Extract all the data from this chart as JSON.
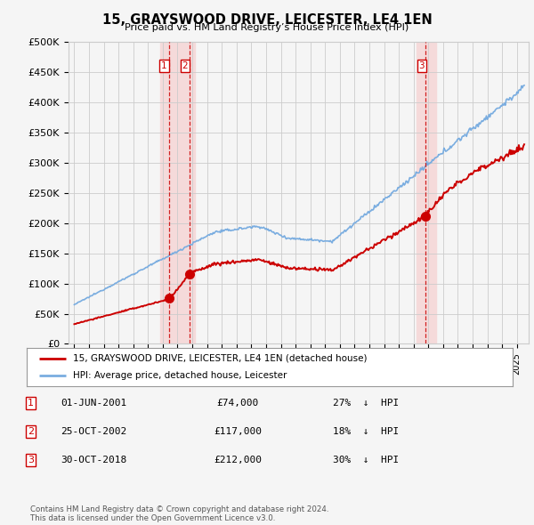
{
  "title": "15, GRAYSWOOD DRIVE, LEICESTER, LE4 1EN",
  "subtitle": "Price paid vs. HM Land Registry’s House Price Index (HPI)",
  "ylim": [
    0,
    500000
  ],
  "yticks": [
    0,
    50000,
    100000,
    150000,
    200000,
    250000,
    300000,
    350000,
    400000,
    450000,
    500000
  ],
  "ytick_labels": [
    "£0",
    "£50K",
    "£100K",
    "£150K",
    "£200K",
    "£250K",
    "£300K",
    "£350K",
    "£400K",
    "£450K",
    "£500K"
  ],
  "legend_label_red": "15, GRAYSWOOD DRIVE, LEICESTER, LE4 1EN (detached house)",
  "legend_label_blue": "HPI: Average price, detached house, Leicester",
  "sale_events": [
    {
      "num": 1,
      "date": "01-JUN-2001",
      "price": 74000,
      "pct": "27%",
      "direction": "↓",
      "x_year": 2001.42
    },
    {
      "num": 2,
      "date": "25-OCT-2002",
      "price": 117000,
      "pct": "18%",
      "direction": "↓",
      "x_year": 2002.82
    },
    {
      "num": 3,
      "date": "30-OCT-2018",
      "price": 212000,
      "pct": "30%",
      "direction": "↓",
      "x_year": 2018.82
    }
  ],
  "red_color": "#cc0000",
  "blue_color": "#7aade0",
  "vline_color": "#cc0000",
  "highlight_color": "#f5dada",
  "background_color": "#f5f5f5",
  "grid_color": "#cccccc",
  "footer_text": "Contains HM Land Registry data © Crown copyright and database right 2024.\nThis data is licensed under the Open Government Licence v3.0.",
  "xlim_left": 1994.6,
  "xlim_right": 2025.8
}
